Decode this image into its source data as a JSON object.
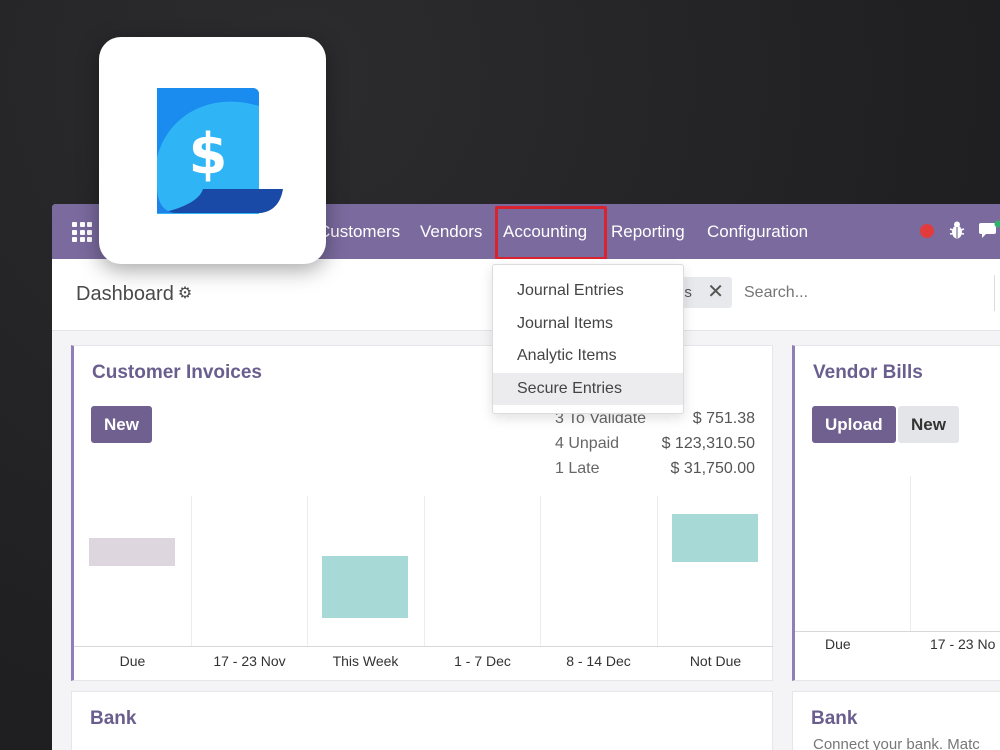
{
  "navbar": {
    "items": [
      "Customers",
      "Vendors",
      "Accounting",
      "Reporting",
      "Configuration"
    ],
    "active": "Accounting",
    "accent_color": "#7a6a9e",
    "highlight_color": "#d9232f"
  },
  "control": {
    "breadcrumb": "Dashboard",
    "facet_label": "es",
    "search_placeholder": "Search..."
  },
  "dropdown": {
    "items": [
      "Journal Entries",
      "Journal Items",
      "Analytic Items",
      "Secure Entries"
    ],
    "active_item": "Secure Entries"
  },
  "customer_invoices": {
    "title": "Customer Invoices",
    "new_label": "New",
    "stats": [
      {
        "label": "3 To Validate",
        "value": "$ 751.38"
      },
      {
        "label": "4 Unpaid",
        "value": "$ 123,310.50"
      },
      {
        "label": "1 Late",
        "value": "$ 31,750.00"
      }
    ]
  },
  "vendor_bills": {
    "title": "Vendor Bills",
    "upload_label": "Upload",
    "new_label": "New",
    "chart_labels": [
      "Due",
      "17 - 23 No"
    ]
  },
  "bank_left": {
    "title": "Bank"
  },
  "bank_right": {
    "title": "Bank",
    "subtitle": "Connect your bank. Matc"
  },
  "chart_data": {
    "type": "bar",
    "categories": [
      "Due",
      "17 - 23 Nov",
      "This Week",
      "1 - 7 Dec",
      "8 - 14 Dec",
      "Not Due"
    ],
    "series": [
      {
        "values": [
          3,
          0,
          10,
          0,
          0,
          7
        ]
      }
    ],
    "colors": [
      "#ddd6de",
      "#ffffff",
      "#a7dad7",
      "#ffffff",
      "#ffffff",
      "#a7dad7"
    ]
  }
}
